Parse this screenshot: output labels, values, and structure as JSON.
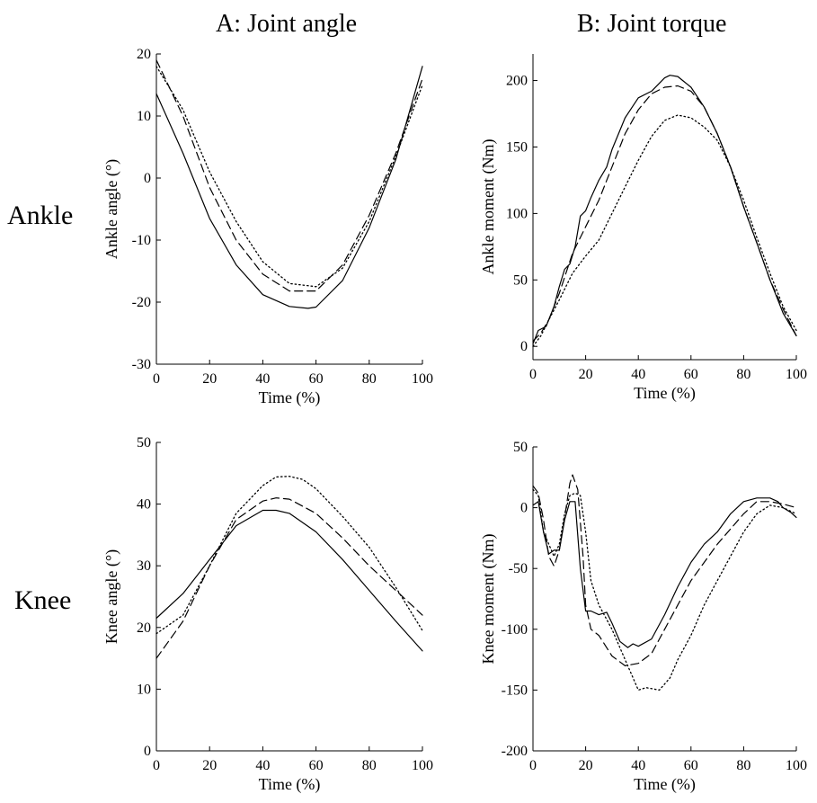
{
  "headers": {
    "col_a": "A: Joint angle",
    "col_b": "B: Joint torque",
    "row_ankle": "Ankle",
    "row_knee": "Knee"
  },
  "chart_data": [
    {
      "id": "ankle-angle",
      "type": "line",
      "xlabel": "Time (%)",
      "ylabel": "Ankle angle (°)",
      "xlim": [
        0,
        100
      ],
      "ylim": [
        -30,
        20
      ],
      "xticks": [
        0,
        20,
        40,
        60,
        80,
        100
      ],
      "yticks": [
        -30,
        -20,
        -10,
        0,
        10,
        20
      ],
      "grid": false,
      "series": [
        {
          "style": "solid",
          "x": [
            0,
            10,
            20,
            30,
            40,
            50,
            57,
            60,
            70,
            80,
            90,
            100
          ],
          "y": [
            13.6,
            4,
            -6.5,
            -14,
            -18.8,
            -20.7,
            -21,
            -20.8,
            -16.5,
            -8,
            3,
            18
          ]
        },
        {
          "style": "dashed",
          "x": [
            0,
            10,
            20,
            30,
            40,
            50,
            60,
            70,
            80,
            90,
            100
          ],
          "y": [
            19,
            10,
            -1.5,
            -10,
            -15.5,
            -18.2,
            -18.2,
            -14,
            -6,
            4,
            16
          ]
        },
        {
          "style": "dotted",
          "x": [
            0,
            10,
            20,
            30,
            40,
            50,
            60,
            70,
            80,
            90,
            100
          ],
          "y": [
            18,
            11,
            1,
            -7,
            -13.5,
            -17,
            -17.5,
            -14.5,
            -7,
            3.5,
            15
          ]
        }
      ]
    },
    {
      "id": "ankle-moment",
      "type": "line",
      "xlabel": "Time (%)",
      "ylabel": "Ankle moment (Nm)",
      "xlim": [
        0,
        100
      ],
      "ylim": [
        -10,
        220
      ],
      "xticks": [
        0,
        20,
        40,
        60,
        80,
        100
      ],
      "yticks": [
        0,
        50,
        100,
        150,
        200
      ],
      "grid": false,
      "series": [
        {
          "style": "solid",
          "x": [
            0,
            2,
            5,
            8,
            10,
            12,
            14,
            16,
            18,
            20,
            22,
            25,
            28,
            30,
            35,
            40,
            45,
            50,
            52,
            55,
            60,
            65,
            70,
            75,
            80,
            85,
            90,
            95,
            100
          ],
          "y": [
            2,
            12,
            15,
            30,
            45,
            58,
            62,
            75,
            98,
            102,
            112,
            125,
            135,
            148,
            172,
            187,
            192,
            202,
            204,
            203,
            195,
            180,
            160,
            135,
            105,
            78,
            50,
            25,
            8
          ]
        },
        {
          "style": "dashed",
          "x": [
            0,
            3,
            6,
            10,
            15,
            20,
            25,
            30,
            35,
            40,
            45,
            50,
            55,
            60,
            65,
            70,
            75,
            80,
            85,
            90,
            95,
            100
          ],
          "y": [
            4,
            10,
            20,
            40,
            70,
            90,
            110,
            135,
            160,
            178,
            190,
            195,
            196,
            192,
            180,
            160,
            135,
            105,
            78,
            50,
            28,
            8
          ]
        },
        {
          "style": "dotted",
          "x": [
            0,
            3,
            6,
            10,
            15,
            20,
            25,
            30,
            35,
            40,
            45,
            50,
            55,
            60,
            65,
            70,
            75,
            80,
            85,
            90,
            95,
            100
          ],
          "y": [
            0,
            8,
            20,
            35,
            55,
            68,
            80,
            100,
            120,
            140,
            158,
            170,
            174,
            172,
            165,
            155,
            135,
            110,
            82,
            55,
            30,
            12
          ]
        }
      ]
    },
    {
      "id": "knee-angle",
      "type": "line",
      "xlabel": "Time (%)",
      "ylabel": "Knee angle (°)",
      "xlim": [
        0,
        100
      ],
      "ylim": [
        0,
        50
      ],
      "xticks": [
        0,
        20,
        40,
        60,
        80,
        100
      ],
      "yticks": [
        0,
        10,
        20,
        30,
        40,
        50
      ],
      "grid": false,
      "series": [
        {
          "style": "solid",
          "x": [
            0,
            10,
            20,
            30,
            40,
            45,
            50,
            60,
            70,
            80,
            90,
            100
          ],
          "y": [
            21.5,
            25.5,
            31,
            36.5,
            39,
            39,
            38.5,
            35.5,
            31,
            26,
            21,
            16.2
          ]
        },
        {
          "style": "dashed",
          "x": [
            0,
            10,
            20,
            30,
            40,
            45,
            50,
            60,
            70,
            80,
            90,
            100
          ],
          "y": [
            15,
            21,
            30,
            37.5,
            40.5,
            41,
            40.8,
            38.5,
            34.5,
            30,
            26,
            22
          ]
        },
        {
          "style": "dotted",
          "x": [
            0,
            10,
            20,
            30,
            40,
            45,
            50,
            55,
            60,
            70,
            80,
            90,
            100
          ],
          "y": [
            19,
            22,
            30,
            38.5,
            43,
            44.4,
            44.5,
            44,
            42.5,
            38,
            33,
            26.5,
            19.5
          ]
        }
      ]
    },
    {
      "id": "knee-moment",
      "type": "line",
      "xlabel": "Time (%)",
      "ylabel": "Knee moment (Nm)",
      "xlim": [
        0,
        100
      ],
      "ylim": [
        -200,
        50
      ],
      "xticks": [
        0,
        20,
        40,
        60,
        80,
        100
      ],
      "yticks": [
        -200,
        -150,
        -100,
        -50,
        0,
        50
      ],
      "grid": false,
      "series": [
        {
          "style": "solid",
          "x": [
            0,
            2,
            4,
            6,
            8,
            10,
            12,
            14,
            16,
            18,
            20,
            22,
            25,
            28,
            30,
            33,
            36,
            38,
            40,
            45,
            50,
            55,
            60,
            65,
            70,
            75,
            80,
            85,
            88,
            90,
            93,
            95,
            98,
            100
          ],
          "y": [
            2,
            5,
            -20,
            -38,
            -35,
            -35,
            -10,
            5,
            5,
            -50,
            -85,
            -85,
            -88,
            -86,
            -95,
            -110,
            -115,
            -112,
            -114,
            -108,
            -88,
            -65,
            -45,
            -30,
            -20,
            -5,
            5,
            8,
            8,
            8,
            5,
            0,
            -4,
            -8
          ]
        },
        {
          "style": "dashed",
          "x": [
            0,
            2,
            4,
            6,
            8,
            10,
            12,
            14,
            15,
            17,
            19,
            20,
            22,
            25,
            30,
            35,
            40,
            45,
            50,
            55,
            60,
            70,
            80,
            85,
            90,
            95,
            100
          ],
          "y": [
            18,
            12,
            -10,
            -40,
            -48,
            -35,
            -8,
            20,
            27,
            15,
            -40,
            -80,
            -100,
            -105,
            -122,
            -130,
            -128,
            -120,
            -100,
            -80,
            -60,
            -30,
            -5,
            5,
            5,
            3,
            0
          ]
        },
        {
          "style": "dotted",
          "x": [
            0,
            2,
            4,
            6,
            8,
            10,
            12,
            14,
            16,
            18,
            20,
            22,
            25,
            30,
            35,
            40,
            43,
            48,
            52,
            55,
            60,
            65,
            70,
            80,
            85,
            90,
            95,
            100
          ],
          "y": [
            15,
            10,
            -20,
            -30,
            -40,
            -30,
            -5,
            10,
            12,
            10,
            -20,
            -60,
            -80,
            -100,
            -125,
            -150,
            -148,
            -150,
            -140,
            -125,
            -105,
            -80,
            -60,
            -20,
            -5,
            2,
            0,
            -5
          ]
        }
      ]
    }
  ]
}
